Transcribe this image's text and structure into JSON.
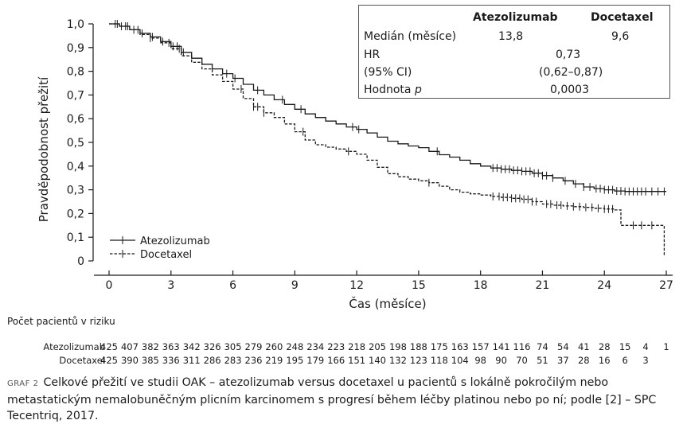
{
  "chart_data": {
    "type": "line",
    "ylabel": "Pravděpodobnost přežití",
    "xlabel": "Čas (měsíce)",
    "xlim": [
      0,
      27
    ],
    "ylim": [
      0,
      1
    ],
    "x_ticks": [
      "0",
      "3",
      "6",
      "9",
      "12",
      "15",
      "18",
      "21",
      "24",
      "27"
    ],
    "y_ticks": [
      "0",
      "0,1",
      "0,2",
      "0,3",
      "0,4",
      "0,5",
      "0,6",
      "0,7",
      "0,8",
      "0,9",
      "1,0"
    ],
    "legend_position": "bottom-left",
    "series": [
      {
        "name": "Atezolizumab",
        "line_style": "solid",
        "points": [
          [
            0,
            1.0
          ],
          [
            0.5,
            0.99
          ],
          [
            1,
            0.975
          ],
          [
            1.5,
            0.96
          ],
          [
            2,
            0.945
          ],
          [
            2.5,
            0.925
          ],
          [
            3,
            0.905
          ],
          [
            3.5,
            0.88
          ],
          [
            4,
            0.855
          ],
          [
            4.5,
            0.83
          ],
          [
            5,
            0.81
          ],
          [
            5.5,
            0.79
          ],
          [
            6,
            0.77
          ],
          [
            6.5,
            0.745
          ],
          [
            7,
            0.72
          ],
          [
            7.5,
            0.7
          ],
          [
            8,
            0.68
          ],
          [
            8.5,
            0.66
          ],
          [
            9,
            0.64
          ],
          [
            9.5,
            0.62
          ],
          [
            10,
            0.605
          ],
          [
            10.5,
            0.59
          ],
          [
            11,
            0.578
          ],
          [
            11.5,
            0.565
          ],
          [
            12,
            0.555
          ],
          [
            12.5,
            0.54
          ],
          [
            13,
            0.522
          ],
          [
            13.5,
            0.505
          ],
          [
            14,
            0.494
          ],
          [
            14.5,
            0.485
          ],
          [
            15,
            0.478
          ],
          [
            15.5,
            0.462
          ],
          [
            16,
            0.448
          ],
          [
            16.5,
            0.438
          ],
          [
            17,
            0.425
          ],
          [
            17.5,
            0.41
          ],
          [
            18,
            0.4
          ],
          [
            18.5,
            0.392
          ],
          [
            19,
            0.387
          ],
          [
            19.5,
            0.382
          ],
          [
            20,
            0.378
          ],
          [
            20.5,
            0.37
          ],
          [
            21,
            0.36
          ],
          [
            21.5,
            0.35
          ],
          [
            22,
            0.338
          ],
          [
            22.5,
            0.325
          ],
          [
            23,
            0.312
          ],
          [
            23.5,
            0.305
          ],
          [
            24,
            0.3
          ],
          [
            24.5,
            0.295
          ],
          [
            25,
            0.293
          ],
          [
            26,
            0.293
          ],
          [
            27,
            0.293
          ]
        ],
        "censor_x": [
          0.3,
          0.6,
          0.9,
          1.2,
          1.6,
          2.1,
          2.6,
          3.1,
          3.3,
          3.6,
          5.7,
          6.1,
          7.2,
          8.4,
          9.3,
          11.8,
          12.1,
          15.9,
          18.6,
          18.8,
          19.0,
          19.2,
          19.4,
          19.6,
          19.8,
          20.0,
          20.2,
          20.4,
          20.6,
          20.8,
          21.0,
          21.2,
          21.5,
          22.1,
          22.6,
          23.0,
          23.3,
          23.6,
          23.8,
          24.0,
          24.2,
          24.4,
          24.6,
          24.8,
          25.0,
          25.2,
          25.4,
          25.6,
          25.8,
          26.0,
          26.3,
          26.6,
          26.9
        ]
      },
      {
        "name": "Docetaxel",
        "line_style": "dashed",
        "points": [
          [
            0,
            1.0
          ],
          [
            0.5,
            0.99
          ],
          [
            1,
            0.975
          ],
          [
            1.5,
            0.955
          ],
          [
            2,
            0.94
          ],
          [
            2.5,
            0.92
          ],
          [
            3,
            0.895
          ],
          [
            3.5,
            0.865
          ],
          [
            4,
            0.838
          ],
          [
            4.5,
            0.81
          ],
          [
            5,
            0.785
          ],
          [
            5.5,
            0.757
          ],
          [
            6,
            0.725
          ],
          [
            6.5,
            0.685
          ],
          [
            7,
            0.65
          ],
          [
            7.5,
            0.625
          ],
          [
            8,
            0.605
          ],
          [
            8.5,
            0.578
          ],
          [
            9,
            0.545
          ],
          [
            9.5,
            0.51
          ],
          [
            10,
            0.49
          ],
          [
            10.5,
            0.48
          ],
          [
            11,
            0.472
          ],
          [
            11.5,
            0.462
          ],
          [
            12,
            0.45
          ],
          [
            12.5,
            0.425
          ],
          [
            13,
            0.395
          ],
          [
            13.5,
            0.368
          ],
          [
            14,
            0.355
          ],
          [
            14.5,
            0.345
          ],
          [
            15,
            0.338
          ],
          [
            15.5,
            0.33
          ],
          [
            16,
            0.315
          ],
          [
            16.5,
            0.3
          ],
          [
            17,
            0.29
          ],
          [
            17.5,
            0.283
          ],
          [
            18,
            0.278
          ],
          [
            18.5,
            0.272
          ],
          [
            19,
            0.268
          ],
          [
            19.5,
            0.264
          ],
          [
            20,
            0.26
          ],
          [
            20.5,
            0.25
          ],
          [
            21,
            0.24
          ],
          [
            21.5,
            0.235
          ],
          [
            22,
            0.232
          ],
          [
            22.5,
            0.229
          ],
          [
            23,
            0.226
          ],
          [
            23.5,
            0.222
          ],
          [
            24,
            0.219
          ],
          [
            24.5,
            0.215
          ],
          [
            24.8,
            0.215
          ],
          [
            24.8,
            0.15
          ],
          [
            26.9,
            0.15
          ],
          [
            26.9,
            0.02
          ]
        ],
        "censor_x": [
          0.4,
          0.8,
          1.4,
          2.0,
          2.9,
          3.4,
          6.4,
          7.0,
          7.2,
          7.5,
          9.4,
          11.6,
          15.5,
          18.6,
          18.9,
          19.1,
          19.3,
          19.5,
          19.7,
          19.9,
          20.1,
          20.3,
          20.5,
          20.7,
          21.2,
          21.4,
          21.7,
          21.9,
          22.2,
          22.5,
          22.8,
          23.1,
          23.4,
          23.7,
          24.0,
          24.2,
          24.4,
          25.4,
          25.8,
          26.3
        ]
      }
    ]
  },
  "stats_table": {
    "col_headers": [
      "Atezolizumab",
      "Docetaxel"
    ],
    "rows": [
      {
        "label": "Medián (měsíce)",
        "atezolizumab": "13,8",
        "docetaxel": "9,6"
      },
      {
        "label": "HR",
        "combined": "0,73"
      },
      {
        "label": "(95% CI)",
        "combined": "(0,62–0,87)"
      },
      {
        "label": "Hodnota",
        "label_italic": "p",
        "combined": "0,0003"
      }
    ]
  },
  "at_risk": {
    "title": "Počet pacientů v riziku",
    "rows": [
      {
        "name": "Atezolizumab",
        "values": [
          "425",
          "407",
          "382",
          "363",
          "342",
          "326",
          "305",
          "279",
          "260",
          "248",
          "234",
          "223",
          "218",
          "205",
          "198",
          "188",
          "175",
          "163",
          "157",
          "141",
          "116",
          "74",
          "54",
          "41",
          "28",
          "15",
          "4",
          "1"
        ]
      },
      {
        "name": "Docetaxel",
        "values": [
          "425",
          "390",
          "385",
          "336",
          "311",
          "286",
          "283",
          "236",
          "219",
          "195",
          "179",
          "166",
          "151",
          "140",
          "132",
          "123",
          "118",
          "104",
          "98",
          "90",
          "70",
          "51",
          "37",
          "28",
          "16",
          "6",
          "3"
        ]
      }
    ]
  },
  "caption": {
    "label": "GRAF 2",
    "text": "Celkové přežití ve studii OAK – atezolizumab versus docetaxel u pacientů s lokálně pokročilým nebo metastatickým nemalobuněčným plicním karcinomem s progresí během léčby platinou nebo po ní; podle [2] – SPC Tecentriq, 2017."
  },
  "colors": {
    "ink": "#1a1a1a",
    "border": "#555555"
  }
}
